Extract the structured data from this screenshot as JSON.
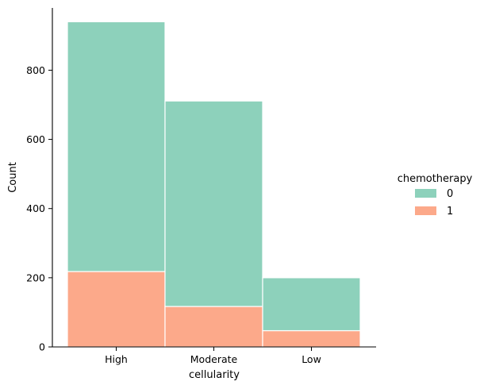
{
  "chart_data": {
    "type": "bar",
    "stacked": true,
    "title": "",
    "xlabel": "cellularity",
    "ylabel": "Count",
    "categories": [
      "High",
      "Moderate",
      "Low"
    ],
    "series": [
      {
        "name": "1",
        "values": [
          218,
          117,
          47
        ],
        "color": "#fca98a"
      },
      {
        "name": "0",
        "values": [
          722,
          594,
          153
        ],
        "color": "#8dd1bb"
      }
    ],
    "ylim": [
      0,
      980
    ],
    "yticks": [
      0,
      200,
      400,
      600,
      800
    ],
    "grid": false,
    "legend": {
      "title": "chemotherapy",
      "placement": "right",
      "entries": [
        {
          "label": "0",
          "color": "#8dd1bb"
        },
        {
          "label": "1",
          "color": "#fca98a"
        }
      ]
    }
  }
}
